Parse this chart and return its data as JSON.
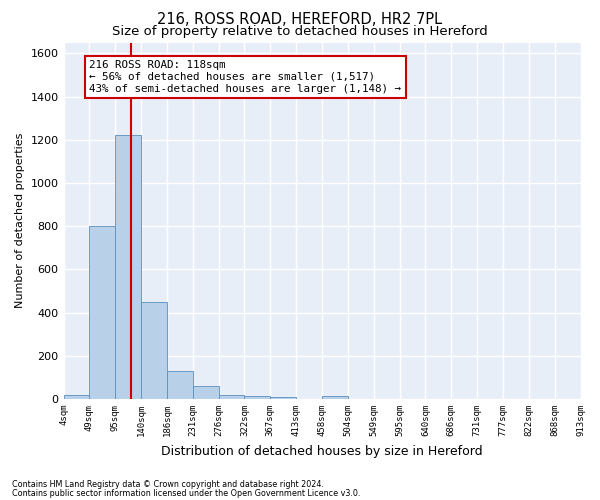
{
  "title": "216, ROSS ROAD, HEREFORD, HR2 7PL",
  "subtitle": "Size of property relative to detached houses in Hereford",
  "xlabel": "Distribution of detached houses by size in Hereford",
  "ylabel": "Number of detached properties",
  "footnote1": "Contains HM Land Registry data © Crown copyright and database right 2024.",
  "footnote2": "Contains public sector information licensed under the Open Government Licence v3.0.",
  "n_bars": 20,
  "bar_values": [
    20,
    800,
    1220,
    450,
    130,
    60,
    20,
    15,
    10,
    0,
    15,
    0,
    0,
    0,
    0,
    0,
    0,
    0,
    0,
    0
  ],
  "bar_color": "#b8d0e8",
  "bar_edgecolor": "#5a8fc0",
  "property_bin": 2.6,
  "vline_color": "#cc0000",
  "annotation_text": "216 ROSS ROAD: 118sqm\n← 56% of detached houses are smaller (1,517)\n43% of semi-detached houses are larger (1,148) →",
  "annotation_box_facecolor": "#ffffff",
  "annotation_box_edgecolor": "#cc0000",
  "ylim": [
    0,
    1650
  ],
  "yticks": [
    0,
    200,
    400,
    600,
    800,
    1000,
    1200,
    1400,
    1600
  ],
  "background_color": "#e8eef8",
  "grid_color": "#ffffff",
  "title_fontsize": 10.5,
  "subtitle_fontsize": 9.5,
  "ylabel_fontsize": 8,
  "xlabel_fontsize": 9,
  "tick_labels": [
    "4sqm",
    "49sqm",
    "95sqm",
    "140sqm",
    "186sqm",
    "231sqm",
    "276sqm",
    "322sqm",
    "367sqm",
    "413sqm",
    "458sqm",
    "504sqm",
    "549sqm",
    "595sqm",
    "640sqm",
    "686sqm",
    "731sqm",
    "777sqm",
    "822sqm",
    "868sqm",
    "913sqm"
  ]
}
